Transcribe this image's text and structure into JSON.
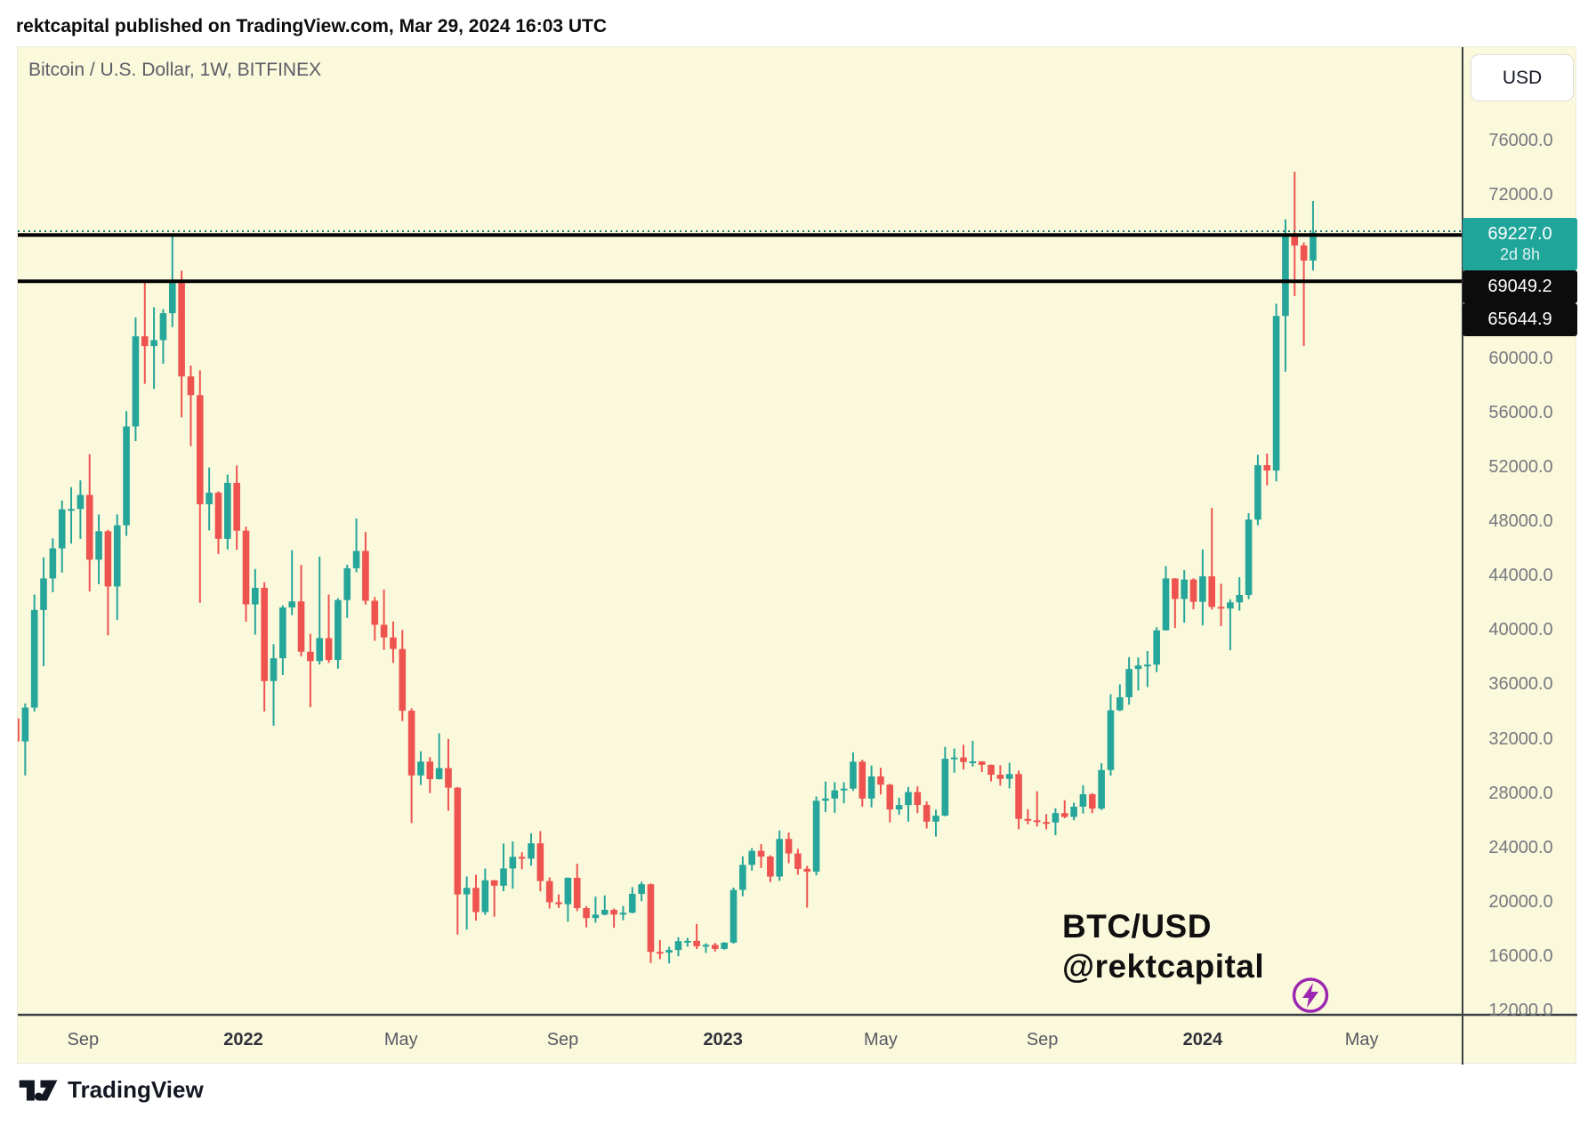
{
  "header": {
    "publish_line": "rektcapital published on TradingView.com, Mar 29, 2024 16:03 UTC"
  },
  "chart": {
    "title": "Bitcoin / U.S. Dollar, 1W, BITFINEX",
    "currency_button": "USD",
    "watermark_line1": "BTC/USD",
    "watermark_line2": "@rektcapital",
    "footer_logo_text": "TradingView"
  },
  "colors": {
    "background": "#fbf9dc",
    "bullish": "#26a69a",
    "bearish": "#ef5350",
    "current_badge": "#1fa59a",
    "level_badge": "#0c0c0c",
    "level_line": "#000000",
    "price_dotted_line": "#1d6f68",
    "axis_line": "#3d4046",
    "tick_text": "#75787f",
    "lightning": "#9c27b0"
  },
  "chart_data": {
    "type": "candlestick",
    "title": "Bitcoin / U.S. Dollar, 1W, BITFINEX",
    "symbol": "BTC/USD",
    "timeframe": "1W",
    "exchange": "BITFINEX",
    "legend_position": "none",
    "grid": false,
    "ylim": [
      11800,
      83000
    ],
    "price_axis": {
      "currency": "USD",
      "ticks": [
        {
          "label": "76000.0",
          "value": 76000
        },
        {
          "label": "72000.0",
          "value": 72000
        },
        {
          "label": "60000.0",
          "value": 60000
        },
        {
          "label": "56000.0",
          "value": 56000
        },
        {
          "label": "52000.0",
          "value": 52000
        },
        {
          "label": "48000.0",
          "value": 48000
        },
        {
          "label": "44000.0",
          "value": 44000
        },
        {
          "label": "40000.0",
          "value": 40000
        },
        {
          "label": "36000.0",
          "value": 36000
        },
        {
          "label": "32000.0",
          "value": 32000
        },
        {
          "label": "28000.0",
          "value": 28000
        },
        {
          "label": "24000.0",
          "value": 24000
        },
        {
          "label": "20000.0",
          "value": 20000
        },
        {
          "label": "16000.0",
          "value": 16000
        },
        {
          "label": "12000.0",
          "value": 12000
        }
      ]
    },
    "current_price_badge": {
      "label": "69227.0",
      "value": 69227.0,
      "countdown": "2d 8h"
    },
    "horizontal_lines": [
      {
        "label": "69049.2",
        "price": 69049.2
      },
      {
        "label": "65644.9",
        "price": 65644.9
      }
    ],
    "time_axis": {
      "labels": [
        {
          "text": "Sep",
          "date": "2021-09-01",
          "bold": false
        },
        {
          "text": "2022",
          "date": "2022-01-01",
          "bold": true
        },
        {
          "text": "May",
          "date": "2022-05-01",
          "bold": false
        },
        {
          "text": "Sep",
          "date": "2022-09-01",
          "bold": false
        },
        {
          "text": "2023",
          "date": "2023-01-01",
          "bold": true
        },
        {
          "text": "May",
          "date": "2023-05-01",
          "bold": false
        },
        {
          "text": "Sep",
          "date": "2023-09-01",
          "bold": false
        },
        {
          "text": "2024",
          "date": "2024-01-01",
          "bold": true
        },
        {
          "text": "May",
          "date": "2024-05-01",
          "bold": false
        }
      ]
    },
    "candle_format": [
      "week_start_date",
      "open",
      "high",
      "low",
      "close"
    ],
    "candles": [
      [
        "2021-07-12",
        33500,
        34400,
        31000,
        31800
      ],
      [
        "2021-07-19",
        31800,
        34600,
        29300,
        34290
      ],
      [
        "2021-07-26",
        34290,
        42600,
        34000,
        41470
      ],
      [
        "2021-08-02",
        41470,
        45340,
        37340,
        43790
      ],
      [
        "2021-08-09",
        43790,
        46740,
        42780,
        46000
      ],
      [
        "2021-08-16",
        46000,
        49520,
        44220,
        48870
      ],
      [
        "2021-08-23",
        48870,
        50500,
        46350,
        48900
      ],
      [
        "2021-08-30",
        48900,
        51000,
        46700,
        49930
      ],
      [
        "2021-09-06",
        49930,
        52920,
        42830,
        45170
      ],
      [
        "2021-09-13",
        45170,
        48500,
        43370,
        47260
      ],
      [
        "2021-09-20",
        47260,
        47360,
        39600,
        43200
      ],
      [
        "2021-09-27",
        43200,
        48500,
        40750,
        47700
      ],
      [
        "2021-10-04",
        47700,
        56100,
        46920,
        54970
      ],
      [
        "2021-10-11",
        54970,
        62980,
        53890,
        61600
      ],
      [
        "2021-10-18",
        61600,
        65650,
        58100,
        60880
      ],
      [
        "2021-10-25",
        60880,
        63730,
        57720,
        61320
      ],
      [
        "2021-11-01",
        61320,
        63600,
        59580,
        63300
      ],
      [
        "2021-11-08",
        63300,
        69050,
        62280,
        65520
      ],
      [
        "2021-11-15",
        65520,
        66430,
        55640,
        58650
      ],
      [
        "2021-11-22",
        58650,
        59450,
        53520,
        57270
      ],
      [
        "2021-11-29",
        57270,
        59100,
        42000,
        49250
      ],
      [
        "2021-12-06",
        49250,
        51950,
        47320,
        50100
      ],
      [
        "2021-12-13",
        50100,
        50200,
        45580,
        46700
      ],
      [
        "2021-12-20",
        46700,
        51430,
        45920,
        50820
      ],
      [
        "2021-12-27",
        50820,
        52100,
        45900,
        47300
      ],
      [
        "2022-01-03",
        47300,
        47600,
        40610,
        41880
      ],
      [
        "2022-01-10",
        41880,
        44480,
        39660,
        43100
      ],
      [
        "2022-01-17",
        43100,
        43500,
        34000,
        36240
      ],
      [
        "2022-01-24",
        36240,
        38960,
        32950,
        37920
      ],
      [
        "2022-01-31",
        37920,
        41810,
        36680,
        41660
      ],
      [
        "2022-02-07",
        41660,
        45870,
        41090,
        42100
      ],
      [
        "2022-02-14",
        42100,
        44780,
        38060,
        38400
      ],
      [
        "2022-02-21",
        38400,
        39720,
        34320,
        37710
      ],
      [
        "2022-02-28",
        37710,
        45400,
        37460,
        39400
      ],
      [
        "2022-03-07",
        39400,
        42600,
        37570,
        37790
      ],
      [
        "2022-03-14",
        37790,
        42330,
        37160,
        42200
      ],
      [
        "2022-03-21",
        42200,
        44800,
        40890,
        44540
      ],
      [
        "2022-03-28",
        44540,
        48200,
        44250,
        45810
      ],
      [
        "2022-04-04",
        45810,
        47200,
        41870,
        42150
      ],
      [
        "2022-04-11",
        42150,
        42420,
        39200,
        40380
      ],
      [
        "2022-04-18",
        40380,
        42970,
        38540,
        39450
      ],
      [
        "2022-04-25",
        39450,
        40620,
        37580,
        38600
      ],
      [
        "2022-05-02",
        38600,
        40000,
        33300,
        34060
      ],
      [
        "2022-05-09",
        34060,
        34240,
        25800,
        29300
      ],
      [
        "2022-05-16",
        29300,
        31080,
        28600,
        30320
      ],
      [
        "2022-05-23",
        30320,
        30650,
        28000,
        29030
      ],
      [
        "2022-05-30",
        29030,
        32400,
        29000,
        29840
      ],
      [
        "2022-06-06",
        29840,
        31980,
        26700,
        28400
      ],
      [
        "2022-06-13",
        28400,
        28450,
        17600,
        20550
      ],
      [
        "2022-06-20",
        20550,
        21870,
        17960,
        21030
      ],
      [
        "2022-06-27",
        21030,
        22000,
        18620,
        19250
      ],
      [
        "2022-07-04",
        19250,
        22450,
        19050,
        21590
      ],
      [
        "2022-07-11",
        21590,
        21600,
        18910,
        21190
      ],
      [
        "2022-07-18",
        21190,
        24290,
        20780,
        22460
      ],
      [
        "2022-07-25",
        22460,
        24450,
        20970,
        23310
      ],
      [
        "2022-08-01",
        23310,
        23650,
        22400,
        23180
      ],
      [
        "2022-08-08",
        23180,
        25050,
        22660,
        24310
      ],
      [
        "2022-08-15",
        24310,
        25210,
        20780,
        21530
      ],
      [
        "2022-08-22",
        21530,
        21800,
        19520,
        19970
      ],
      [
        "2022-08-29",
        19970,
        20550,
        19550,
        19830
      ],
      [
        "2022-09-05",
        19830,
        21800,
        18540,
        21770
      ],
      [
        "2022-09-12",
        21770,
        22800,
        19320,
        19540
      ],
      [
        "2022-09-19",
        19540,
        19690,
        18125,
        18810
      ],
      [
        "2022-09-26",
        18810,
        20380,
        18470,
        19060
      ],
      [
        "2022-10-03",
        19060,
        20475,
        19010,
        19415
      ],
      [
        "2022-10-10",
        19415,
        19510,
        18090,
        19070
      ],
      [
        "2022-10-17",
        19070,
        19700,
        18650,
        19200
      ],
      [
        "2022-10-24",
        19200,
        21085,
        19160,
        20590
      ],
      [
        "2022-10-31",
        20590,
        21480,
        20050,
        21300
      ],
      [
        "2022-11-07",
        21300,
        21350,
        15500,
        16320
      ],
      [
        "2022-11-14",
        16320,
        17190,
        15780,
        16270
      ],
      [
        "2022-11-21",
        16270,
        16700,
        15480,
        16460
      ],
      [
        "2022-11-28",
        16460,
        17400,
        16000,
        17110
      ],
      [
        "2022-12-05",
        17110,
        17350,
        16700,
        17130
      ],
      [
        "2022-12-12",
        17130,
        18380,
        16530,
        16740
      ],
      [
        "2022-12-19",
        16740,
        16950,
        16250,
        16840
      ],
      [
        "2022-12-26",
        16840,
        16980,
        16350,
        16540
      ],
      [
        "2023-01-02",
        16540,
        17040,
        16480,
        17000
      ],
      [
        "2023-01-09",
        17000,
        21050,
        16940,
        20880
      ],
      [
        "2023-01-16",
        20880,
        23350,
        20410,
        22720
      ],
      [
        "2023-01-23",
        22720,
        23950,
        22300,
        23750
      ],
      [
        "2023-01-30",
        23750,
        24250,
        22500,
        23330
      ],
      [
        "2023-02-06",
        23330,
        23430,
        21450,
        21860
      ],
      [
        "2023-02-13",
        21860,
        25250,
        21550,
        24630
      ],
      [
        "2023-02-20",
        24630,
        25100,
        22850,
        23560
      ],
      [
        "2023-02-27",
        23560,
        23900,
        22000,
        22430
      ],
      [
        "2023-03-06",
        22430,
        22650,
        19570,
        22220
      ],
      [
        "2023-03-13",
        22220,
        27750,
        21950,
        27440
      ],
      [
        "2023-03-20",
        27440,
        28850,
        26600,
        27600
      ],
      [
        "2023-03-27",
        27600,
        28800,
        26550,
        28200
      ],
      [
        "2023-04-03",
        28200,
        28800,
        27250,
        28330
      ],
      [
        "2023-04-10",
        28330,
        31000,
        28170,
        30310
      ],
      [
        "2023-04-17",
        30310,
        30450,
        27000,
        27600
      ],
      [
        "2023-04-24",
        27600,
        30030,
        26950,
        29230
      ],
      [
        "2023-05-01",
        29230,
        29860,
        27900,
        28620
      ],
      [
        "2023-05-08",
        28620,
        28680,
        25850,
        26800
      ],
      [
        "2023-05-15",
        26800,
        27660,
        26400,
        27120
      ],
      [
        "2023-05-22",
        27120,
        28450,
        25900,
        28080
      ],
      [
        "2023-05-29",
        28080,
        28500,
        26530,
        27130
      ],
      [
        "2023-06-05",
        27130,
        27380,
        25400,
        25900
      ],
      [
        "2023-06-12",
        25900,
        26780,
        24800,
        26340
      ],
      [
        "2023-06-19",
        26340,
        31400,
        26300,
        30530
      ],
      [
        "2023-06-26",
        30530,
        31280,
        29500,
        30620
      ],
      [
        "2023-07-03",
        30620,
        31550,
        29730,
        30290
      ],
      [
        "2023-07-10",
        30290,
        31850,
        29950,
        30330
      ],
      [
        "2023-07-17",
        30330,
        30340,
        29560,
        30080
      ],
      [
        "2023-07-24",
        30080,
        30100,
        28860,
        29350
      ],
      [
        "2023-07-31",
        29350,
        30050,
        28550,
        29050
      ],
      [
        "2023-08-07",
        29050,
        30230,
        28350,
        29400
      ],
      [
        "2023-08-14",
        29400,
        29650,
        25350,
        26100
      ],
      [
        "2023-08-21",
        26100,
        26820,
        25700,
        26000
      ],
      [
        "2023-08-28",
        26000,
        28140,
        25550,
        25870
      ],
      [
        "2023-09-04",
        25870,
        26450,
        25330,
        25840
      ],
      [
        "2023-09-11",
        25840,
        26880,
        24900,
        26530
      ],
      [
        "2023-09-18",
        26530,
        27480,
        26150,
        26250
      ],
      [
        "2023-09-25",
        26250,
        27300,
        26000,
        27000
      ],
      [
        "2023-10-02",
        27000,
        28580,
        26500,
        27920
      ],
      [
        "2023-10-09",
        27920,
        27990,
        26520,
        26860
      ],
      [
        "2023-10-16",
        26860,
        30200,
        26750,
        29700
      ],
      [
        "2023-10-23",
        29700,
        35280,
        29290,
        34090
      ],
      [
        "2023-10-30",
        34090,
        36000,
        34030,
        35050
      ],
      [
        "2023-11-06",
        35050,
        38000,
        34500,
        37130
      ],
      [
        "2023-11-13",
        37130,
        37980,
        35550,
        37390
      ],
      [
        "2023-11-20",
        37390,
        38450,
        35800,
        37450
      ],
      [
        "2023-11-27",
        37450,
        40200,
        36900,
        39970
      ],
      [
        "2023-12-04",
        39970,
        44700,
        39960,
        43790
      ],
      [
        "2023-12-11",
        43790,
        43810,
        40145,
        42280
      ],
      [
        "2023-12-18",
        42280,
        44400,
        40530,
        43710
      ],
      [
        "2023-12-25",
        43710,
        43800,
        41520,
        42070
      ],
      [
        "2024-01-01",
        42070,
        45920,
        40340,
        43950
      ],
      [
        "2024-01-08",
        43950,
        48970,
        41500,
        41700
      ],
      [
        "2024-01-15",
        41700,
        43400,
        40280,
        41580
      ],
      [
        "2024-01-22",
        41580,
        42250,
        38510,
        42030
      ],
      [
        "2024-01-29",
        42030,
        43880,
        41420,
        42570
      ],
      [
        "2024-02-05",
        42570,
        48590,
        42270,
        48120
      ],
      [
        "2024-02-12",
        48120,
        52890,
        47710,
        52120
      ],
      [
        "2024-02-19",
        52120,
        52970,
        50630,
        51730
      ],
      [
        "2024-02-26",
        51730,
        64000,
        50930,
        63100
      ],
      [
        "2024-03-04",
        63100,
        70200,
        59000,
        68950
      ],
      [
        "2024-03-11",
        68950,
        73710,
        64550,
        68280
      ],
      [
        "2024-03-18",
        68280,
        68500,
        60890,
        67170
      ],
      [
        "2024-03-25",
        67170,
        71550,
        66450,
        69227
      ]
    ]
  }
}
